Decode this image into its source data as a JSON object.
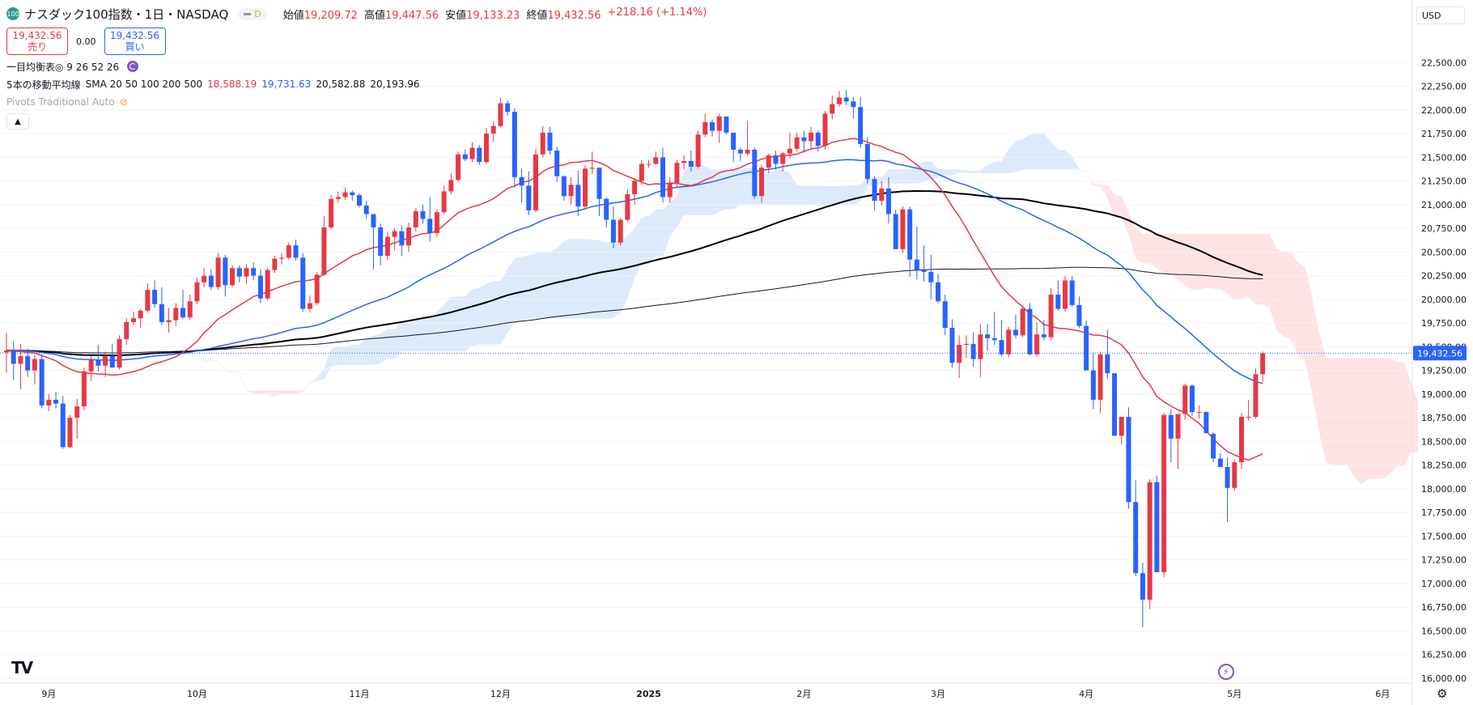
{
  "header": {
    "symbol_badge": "100",
    "title": "ナスダック100指数・1日・NASDAQ",
    "interval_badge": "D",
    "ohlc": [
      {
        "label": "始値",
        "value": "19,209.72"
      },
      {
        "label": "高値",
        "value": "19,447.56"
      },
      {
        "label": "安値",
        "value": "19,133.23"
      },
      {
        "label": "終値",
        "value": "19,432.56"
      }
    ],
    "change": "+218.16 (+1.14%)",
    "sell": {
      "price": "19,432.56",
      "label": "売り"
    },
    "spread": "0.00",
    "buy": {
      "price": "19,432.56",
      "label": "買い"
    }
  },
  "indicators": {
    "ichimoku": "一目均衡表◎ 9 26 52 26",
    "sma_label": "5本の移動平均線",
    "sma_params": "SMA 20 50 100 200 500",
    "sma_values": [
      {
        "value": "18,588.19",
        "color": "#e53945"
      },
      {
        "value": "19,731.63",
        "color": "#2962ff"
      },
      {
        "value": "20,582.88",
        "color": "#131722"
      },
      {
        "value": "20,193.96",
        "color": "#131722"
      }
    ],
    "pivots": "Pivots Traditional Auto"
  },
  "toolbar": {
    "currency": "USD",
    "collapse_icon": "chevron-up-icon",
    "logo": "TV",
    "bolt_icon": "lightning-icon",
    "settings_icon": "gear-icon"
  },
  "colors": {
    "up": "#e53945",
    "down": "#2962ff",
    "sma20": "#e53945",
    "sma50": "#2962ff",
    "sma200": "#000000",
    "sma500": "#131722",
    "cloud_bear": "#fde3e3",
    "cloud_bull": "#ddeafb"
  },
  "chart_data": {
    "type": "candlestick",
    "ylim": [
      16000,
      22750
    ],
    "y_ticks": [
      16000,
      16250,
      16500,
      16750,
      17000,
      17250,
      17500,
      17750,
      18000,
      18250,
      18500,
      18750,
      19000,
      19250,
      19500,
      19750,
      20000,
      20250,
      20500,
      20750,
      21000,
      21250,
      21500,
      21750,
      22000,
      22250,
      22500
    ],
    "y_tick_labels": [
      "16,000.00",
      "16,250.00",
      "16,500.00",
      "16,750.00",
      "17,000.00",
      "17,250.00",
      "17,500.00",
      "17,750.00",
      "18,000.00",
      "18,250.00",
      "18,500.00",
      "18,750.00",
      "19,000.00",
      "19,250.00",
      "19,500.00",
      "19,750.00",
      "20,000.00",
      "20,250.00",
      "20,500.00",
      "20,750.00",
      "21,000.00",
      "21,250.00",
      "21,500.00",
      "21,750.00",
      "22,000.00",
      "22,250.00",
      "22,500.00"
    ],
    "last_price": 19432.56,
    "last_price_label": "19,432.56",
    "x_labels": [
      {
        "label": "9月",
        "index": 6
      },
      {
        "label": "10月",
        "index": 27
      },
      {
        "label": "11月",
        "index": 50
      },
      {
        "label": "12月",
        "index": 70
      },
      {
        "label": "2025",
        "index": 91
      },
      {
        "label": "2月",
        "index": 113
      },
      {
        "label": "3月",
        "index": 132
      },
      {
        "label": "4月",
        "index": 153
      },
      {
        "label": "5月",
        "index": 174
      },
      {
        "label": "6月",
        "index": 195
      }
    ],
    "candles": [
      [
        19440,
        19650,
        19230,
        19460
      ],
      [
        19460,
        19560,
        19150,
        19320
      ],
      [
        19320,
        19530,
        19050,
        19400
      ],
      [
        19400,
        19480,
        19180,
        19250
      ],
      [
        19250,
        19420,
        19100,
        19370
      ],
      [
        19370,
        19420,
        18850,
        18880
      ],
      [
        18880,
        19000,
        18820,
        18940
      ],
      [
        18940,
        19020,
        18850,
        18900
      ],
      [
        18900,
        18980,
        18420,
        18440
      ],
      [
        18440,
        18780,
        18430,
        18750
      ],
      [
        18750,
        18950,
        18530,
        18870
      ],
      [
        18870,
        19280,
        18830,
        19240
      ],
      [
        19240,
        19400,
        19140,
        19360
      ],
      [
        19360,
        19520,
        19240,
        19300
      ],
      [
        19300,
        19450,
        19180,
        19400
      ],
      [
        19400,
        19530,
        19280,
        19280
      ],
      [
        19280,
        19620,
        19260,
        19580
      ],
      [
        19580,
        19800,
        19520,
        19760
      ],
      [
        19760,
        19870,
        19730,
        19800
      ],
      [
        19800,
        19900,
        19700,
        19880
      ],
      [
        19880,
        20170,
        19860,
        20100
      ],
      [
        20100,
        20200,
        19910,
        19950
      ],
      [
        19950,
        20130,
        19730,
        19760
      ],
      [
        19760,
        19910,
        19650,
        19780
      ],
      [
        19780,
        19960,
        19720,
        19910
      ],
      [
        19910,
        20100,
        19790,
        19810
      ],
      [
        19810,
        20050,
        19780,
        19980
      ],
      [
        19980,
        20230,
        19950,
        20180
      ],
      [
        20180,
        20330,
        20130,
        20250
      ],
      [
        20250,
        20320,
        20100,
        20130
      ],
      [
        20130,
        20490,
        20100,
        20440
      ],
      [
        20440,
        20470,
        20030,
        20150
      ],
      [
        20150,
        20360,
        20130,
        20330
      ],
      [
        20330,
        20360,
        20180,
        20240
      ],
      [
        20240,
        20370,
        20160,
        20330
      ],
      [
        20330,
        20390,
        20200,
        20250
      ],
      [
        20250,
        20320,
        19960,
        20010
      ],
      [
        20010,
        20330,
        19990,
        20310
      ],
      [
        20310,
        20460,
        20280,
        20430
      ],
      [
        20430,
        20490,
        20370,
        20440
      ],
      [
        20440,
        20600,
        20420,
        20570
      ],
      [
        20570,
        20630,
        20410,
        20440
      ],
      [
        20440,
        20490,
        19870,
        19900
      ],
      [
        19900,
        20040,
        19860,
        19960
      ],
      [
        19960,
        20290,
        19940,
        20260
      ],
      [
        20260,
        20880,
        20250,
        20760
      ],
      [
        20760,
        21100,
        20740,
        21060
      ],
      [
        21060,
        21140,
        21020,
        21080
      ],
      [
        21080,
        21180,
        21050,
        21130
      ],
      [
        21130,
        21150,
        21040,
        21100
      ],
      [
        21100,
        21120,
        20970,
        20990
      ],
      [
        20990,
        21040,
        20850,
        20900
      ],
      [
        20900,
        20850,
        20320,
        20760
      ],
      [
        20760,
        20800,
        20360,
        20460
      ],
      [
        20460,
        20720,
        20410,
        20660
      ],
      [
        20660,
        20750,
        20520,
        20720
      ],
      [
        20720,
        20780,
        20460,
        20570
      ],
      [
        20570,
        20810,
        20500,
        20760
      ],
      [
        20760,
        20960,
        20720,
        20930
      ],
      [
        20930,
        21000,
        20800,
        20850
      ],
      [
        20850,
        21080,
        20610,
        20700
      ],
      [
        20700,
        20950,
        20660,
        20920
      ],
      [
        20920,
        21200,
        20900,
        21140
      ],
      [
        21140,
        21330,
        21110,
        21260
      ],
      [
        21260,
        21560,
        21240,
        21530
      ],
      [
        21530,
        21580,
        21460,
        21480
      ],
      [
        21480,
        21660,
        21450,
        21600
      ],
      [
        21600,
        21630,
        21420,
        21450
      ],
      [
        21450,
        21810,
        21430,
        21750
      ],
      [
        21750,
        21880,
        21660,
        21830
      ],
      [
        21830,
        22130,
        21820,
        22070
      ],
      [
        22070,
        22100,
        21940,
        21980
      ],
      [
        21980,
        22020,
        21180,
        21290
      ],
      [
        21290,
        21380,
        21020,
        21200
      ],
      [
        21200,
        21350,
        20890,
        20940
      ],
      [
        20940,
        21590,
        20920,
        21530
      ],
      [
        21530,
        21830,
        21500,
        21760
      ],
      [
        21760,
        21820,
        21530,
        21570
      ],
      [
        21570,
        21610,
        21240,
        21300
      ],
      [
        21300,
        21310,
        21040,
        21090
      ],
      [
        21090,
        21290,
        21000,
        21210
      ],
      [
        21210,
        21360,
        20880,
        20980
      ],
      [
        20980,
        21420,
        20960,
        21380
      ],
      [
        21380,
        21560,
        21320,
        21390
      ],
      [
        21390,
        21360,
        20880,
        21060
      ],
      [
        21060,
        21080,
        20760,
        20840
      ],
      [
        20840,
        20980,
        20540,
        20600
      ],
      [
        20600,
        20860,
        20570,
        20840
      ],
      [
        20840,
        21160,
        20820,
        21110
      ],
      [
        21110,
        21280,
        21000,
        21250
      ],
      [
        21250,
        21470,
        21210,
        21430
      ],
      [
        21430,
        21470,
        21390,
        21430
      ],
      [
        21430,
        21560,
        21420,
        21500
      ],
      [
        21500,
        21600,
        21020,
        21080
      ],
      [
        21080,
        21290,
        21020,
        21230
      ],
      [
        21230,
        21470,
        21190,
        21440
      ],
      [
        21440,
        21520,
        21370,
        21460
      ],
      [
        21460,
        21570,
        21350,
        21400
      ],
      [
        21400,
        21780,
        21380,
        21740
      ],
      [
        21740,
        21960,
        21710,
        21870
      ],
      [
        21870,
        21900,
        21720,
        21780
      ],
      [
        21780,
        21960,
        21650,
        21930
      ],
      [
        21930,
        21930,
        21740,
        21760
      ],
      [
        21760,
        21710,
        21450,
        21580
      ],
      [
        21580,
        21600,
        21460,
        21540
      ],
      [
        21540,
        21880,
        21520,
        21580
      ],
      [
        21580,
        21600,
        21060,
        21090
      ],
      [
        21090,
        21420,
        21020,
        21390
      ],
      [
        21390,
        21540,
        21330,
        21520
      ],
      [
        21520,
        21570,
        21370,
        21430
      ],
      [
        21430,
        21560,
        21350,
        21540
      ],
      [
        21540,
        21760,
        21490,
        21590
      ],
      [
        21590,
        21760,
        21560,
        21710
      ],
      [
        21710,
        21780,
        21550,
        21670
      ],
      [
        21670,
        21820,
        21590,
        21760
      ],
      [
        21760,
        21780,
        21560,
        21620
      ],
      [
        21620,
        21990,
        21580,
        21960
      ],
      [
        21960,
        22150,
        21900,
        22060
      ],
      [
        22060,
        22200,
        22030,
        22130
      ],
      [
        22130,
        22210,
        22050,
        22090
      ],
      [
        22090,
        22140,
        21910,
        22030
      ],
      [
        22030,
        22130,
        21600,
        21640
      ],
      [
        21640,
        21710,
        21220,
        21270
      ],
      [
        21270,
        21300,
        20940,
        21040
      ],
      [
        21040,
        21250,
        20990,
        21170
      ],
      [
        21170,
        21290,
        20800,
        20900
      ],
      [
        20900,
        20950,
        20530,
        20530
      ],
      [
        20530,
        20980,
        20490,
        20950
      ],
      [
        20950,
        20980,
        20240,
        20420
      ],
      [
        20420,
        20770,
        20210,
        20310
      ],
      [
        20310,
        20570,
        20190,
        20290
      ],
      [
        20290,
        20470,
        20000,
        20180
      ],
      [
        20180,
        20270,
        19960,
        19980
      ],
      [
        19980,
        20050,
        19620,
        19700
      ],
      [
        19700,
        19790,
        19280,
        19330
      ],
      [
        19330,
        19620,
        19170,
        19520
      ],
      [
        19520,
        19620,
        19380,
        19530
      ],
      [
        19530,
        19650,
        19290,
        19370
      ],
      [
        19370,
        19740,
        19180,
        19630
      ],
      [
        19630,
        19740,
        19460,
        19590
      ],
      [
        19590,
        19870,
        19520,
        19570
      ],
      [
        19570,
        19780,
        19400,
        19420
      ],
      [
        19420,
        19710,
        19390,
        19680
      ],
      [
        19680,
        19840,
        19590,
        19620
      ],
      [
        19620,
        19930,
        19600,
        19900
      ],
      [
        19900,
        19960,
        19410,
        19420
      ],
      [
        19420,
        19760,
        19390,
        19630
      ],
      [
        19630,
        19780,
        19570,
        19600
      ],
      [
        19600,
        20120,
        19570,
        20050
      ],
      [
        20050,
        20200,
        19880,
        19900
      ],
      [
        19900,
        20250,
        19870,
        20200
      ],
      [
        20200,
        20250,
        19920,
        19940
      ],
      [
        19940,
        20030,
        19700,
        19720
      ],
      [
        19720,
        19780,
        19250,
        19250
      ],
      [
        19250,
        19440,
        18840,
        18940
      ],
      [
        18940,
        19450,
        18800,
        19420
      ],
      [
        19420,
        19680,
        19160,
        19220
      ],
      [
        19220,
        19200,
        18560,
        18560
      ],
      [
        18560,
        18760,
        18470,
        18760
      ],
      [
        18760,
        18860,
        17790,
        17860
      ],
      [
        17860,
        18090,
        17080,
        17110
      ],
      [
        17110,
        17220,
        16540,
        16830
      ],
      [
        16830,
        18100,
        16730,
        18070
      ],
      [
        18070,
        18140,
        17120,
        17120
      ],
      [
        17120,
        18800,
        17070,
        18780
      ],
      [
        18780,
        18840,
        18280,
        18530
      ],
      [
        18530,
        18790,
        18210,
        18790
      ],
      [
        18790,
        19110,
        18730,
        19090
      ],
      [
        19090,
        19100,
        18770,
        18810
      ],
      [
        18810,
        18880,
        18740,
        18810
      ],
      [
        18810,
        18820,
        18580,
        18590
      ],
      [
        18580,
        18600,
        18280,
        18320
      ],
      [
        18320,
        18380,
        18230,
        18230
      ],
      [
        18230,
        18330,
        17650,
        18010
      ],
      [
        18010,
        18310,
        17980,
        18280
      ],
      [
        18280,
        18800,
        18210,
        18760
      ],
      [
        18760,
        18940,
        18720,
        18760
      ],
      [
        18760,
        19270,
        18740,
        19210
      ],
      [
        19210,
        19450,
        19130,
        19430
      ]
    ]
  }
}
